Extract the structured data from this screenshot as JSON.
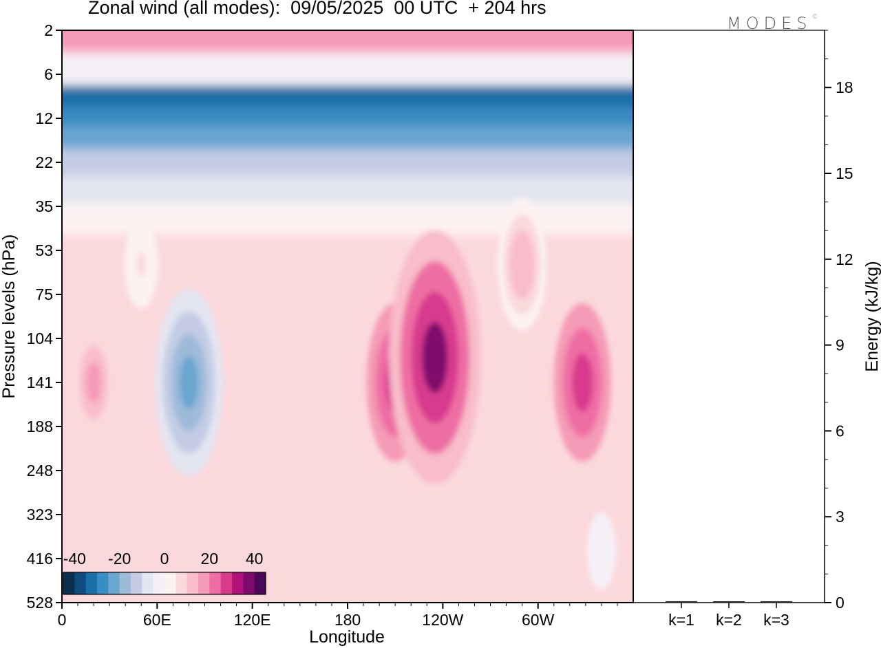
{
  "title": "Zonal wind (all modes):  09/05/2025  00 UTC  + 204 hrs",
  "brand": {
    "text": "MODES",
    "mark": "©"
  },
  "chart_data": [
    {
      "type": "heatmap",
      "xlabel": "Longitude",
      "ylabel": "Pressure levels (hPa)",
      "x_ticks": [
        "0",
        "60E",
        "120E",
        "180",
        "120W",
        "60W"
      ],
      "x_tick_values": [
        0,
        60,
        120,
        180,
        240,
        300
      ],
      "xlim": [
        0,
        360
      ],
      "y_ticks": [
        "2",
        "6",
        "12",
        "22",
        "35",
        "53",
        "75",
        "104",
        "141",
        "188",
        "248",
        "323",
        "416",
        "528"
      ],
      "colorbar": {
        "labels": [
          "-40",
          "-20",
          "0",
          "20",
          "40"
        ],
        "label_values": [
          -40,
          -20,
          0,
          20,
          40
        ],
        "range": [
          -45,
          45
        ],
        "colors": [
          "#0b2f4e",
          "#0d4d7e",
          "#1a6fa8",
          "#3b8cc2",
          "#6aa6d0",
          "#9dbad9",
          "#c3cce4",
          "#e3e5f1",
          "#f5f0f6",
          "#fdf2f2",
          "#fbd8dc",
          "#f8bccb",
          "#f59ab7",
          "#ee6ea3",
          "#d83b8e",
          "#b0137a",
          "#7f0a6c",
          "#4b0858"
        ]
      },
      "bands": [
        {
          "level": "2",
          "description": "positive",
          "value": 18
        },
        {
          "level": "6",
          "description": "weak",
          "value": -4
        },
        {
          "level": "9",
          "description": "strong negative",
          "value": -34
        },
        {
          "level": "12",
          "description": "negative",
          "value": -28
        },
        {
          "level": "16",
          "description": "negative",
          "value": -22
        },
        {
          "level": "22",
          "description": "negative",
          "value": -14
        },
        {
          "level": "30",
          "description": "weak negative",
          "value": -6
        },
        {
          "level": "40",
          "description": "near zero",
          "value": 2
        },
        {
          "level": "53-416",
          "description": "mostly weak positive",
          "value": 8
        }
      ],
      "features": [
        {
          "lon": 20,
          "level": "141",
          "value": 16
        },
        {
          "lon": 80,
          "level": "141",
          "value": -24
        },
        {
          "lon": 210,
          "level": "141",
          "value": 28
        },
        {
          "lon": 235,
          "level": "120",
          "value": 36
        },
        {
          "lon": 328,
          "level": "141",
          "value": 28
        },
        {
          "lon": 290,
          "level": "60",
          "value": 14
        },
        {
          "lon": 50,
          "level": "60",
          "value": 6
        },
        {
          "lon": 340,
          "level": "400",
          "value": -4
        }
      ]
    },
    {
      "type": "bar",
      "ylabel": "Energy (kJ/kg)",
      "categories": [
        "k=1",
        "k=2",
        "k=3"
      ],
      "values": [
        0.05,
        0.04,
        0.02
      ],
      "ylim": [
        0,
        20
      ],
      "y_ticks": [
        "0",
        "3",
        "6",
        "9",
        "12",
        "15",
        "18"
      ],
      "y_tick_values": [
        0,
        3,
        6,
        9,
        12,
        15,
        18
      ]
    }
  ]
}
